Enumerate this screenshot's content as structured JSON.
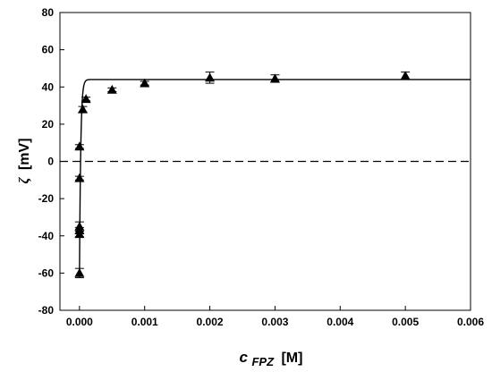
{
  "chart_data": {
    "type": "scatter",
    "title": "",
    "xlabel": {
      "symbol": "c",
      "subscript": "FPZ",
      "unit": "[M]"
    },
    "ylabel": {
      "symbol": "ζ",
      "unit": "[mV]"
    },
    "xlim": [
      -0.0003,
      0.006
    ],
    "ylim": [
      -80,
      80
    ],
    "x_ticks": [
      0.0,
      0.001,
      0.002,
      0.003,
      0.004,
      0.005,
      0.006
    ],
    "x_tick_labels": [
      "0.000",
      "0.001",
      "0.002",
      "0.003",
      "0.004",
      "0.005",
      "0.006"
    ],
    "y_ticks": [
      -80,
      -60,
      -40,
      -20,
      0,
      20,
      40,
      60,
      80
    ],
    "y_tick_labels": [
      "-80",
      "-60",
      "-40",
      "-20",
      "0",
      "20",
      "40",
      "60",
      "80"
    ],
    "grid": false,
    "series": [
      {
        "marker": "triangle",
        "color": "#000000",
        "points": [
          {
            "x": 0.0,
            "y": -60,
            "err": 2.5
          },
          {
            "x": 0.0,
            "y": -39,
            "err": 1.5
          },
          {
            "x": 0.0,
            "y": -37,
            "err": 1.5
          },
          {
            "x": 0.0,
            "y": -35,
            "err": 2.5
          },
          {
            "x": 0.0,
            "y": -9,
            "err": 1
          },
          {
            "x": 0.0,
            "y": 8,
            "err": 1
          },
          {
            "x": 5e-05,
            "y": 28,
            "err": 1.5
          },
          {
            "x": 0.0001,
            "y": 33.5,
            "err": 1
          },
          {
            "x": 0.0005,
            "y": 38.5,
            "err": 1
          },
          {
            "x": 0.001,
            "y": 42,
            "err": 1
          },
          {
            "x": 0.002,
            "y": 45,
            "err": 3
          },
          {
            "x": 0.003,
            "y": 44.5,
            "err": 2
          },
          {
            "x": 0.005,
            "y": 46,
            "err": 2
          }
        ]
      }
    ],
    "fit_curve": {
      "style": "solid",
      "color": "#000000",
      "plateau": 44,
      "start": -60
    },
    "reference_line": {
      "y": 0,
      "style": "dashed",
      "color": "#000000"
    }
  }
}
